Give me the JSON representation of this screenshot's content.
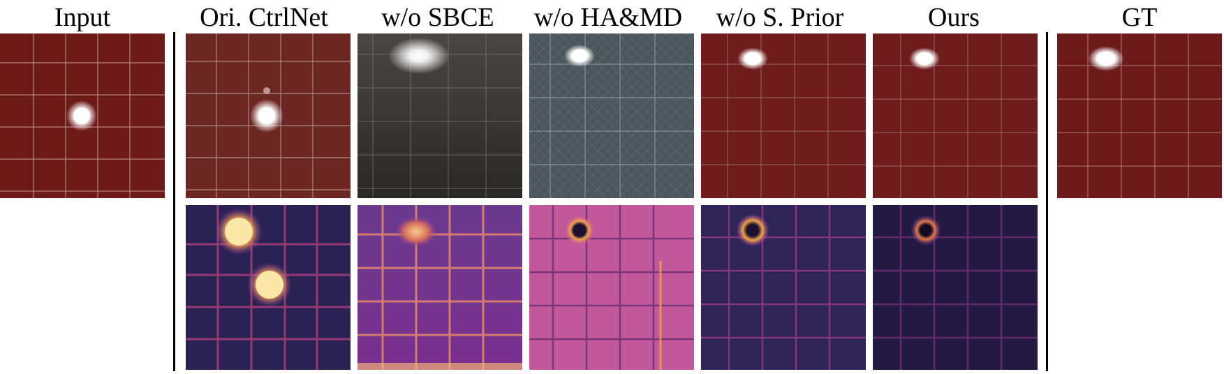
{
  "columns": [
    {
      "key": "input",
      "label": "Input"
    },
    {
      "key": "ctrlnet",
      "label": "Ori. CtrlNet"
    },
    {
      "key": "sbce",
      "label": "w/o SBCE"
    },
    {
      "key": "hamd",
      "label": "w/o HA&MD"
    },
    {
      "key": "sprior",
      "label": "w/o S. Prior"
    },
    {
      "key": "ours",
      "label": "Ours"
    },
    {
      "key": "gt",
      "label": "GT"
    }
  ],
  "colors": {
    "tile_red": "#6e1a18",
    "tile_dark": "#3a3634",
    "tile_slate": "#4a555c",
    "heat_dark": "#241a48",
    "heat_mid": "#8a3a9a",
    "heat_hot": "#f3a44a",
    "heat_peak": "#fbe8a8"
  }
}
